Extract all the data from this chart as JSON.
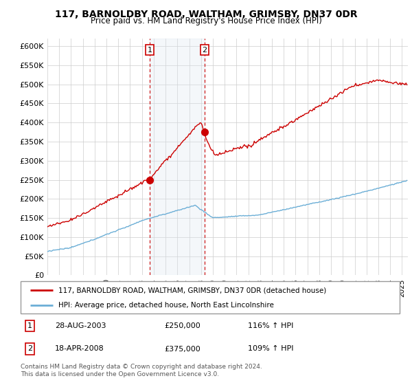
{
  "title": "117, BARNOLDBY ROAD, WALTHAM, GRIMSBY, DN37 0DR",
  "subtitle": "Price paid vs. HM Land Registry's House Price Index (HPI)",
  "ylabel_ticks": [
    "£0",
    "£50K",
    "£100K",
    "£150K",
    "£200K",
    "£250K",
    "£300K",
    "£350K",
    "£400K",
    "£450K",
    "£500K",
    "£550K",
    "£600K"
  ],
  "ylim": [
    0,
    620000
  ],
  "sale1_date_num": 2003.66,
  "sale1_price": 250000,
  "sale2_date_num": 2008.3,
  "sale2_price": 375000,
  "legend_line1": "117, BARNOLDBY ROAD, WALTHAM, GRIMSBY, DN37 0DR (detached house)",
  "legend_line2": "HPI: Average price, detached house, North East Lincolnshire",
  "table_row1": [
    "1",
    "28-AUG-2003",
    "£250,000",
    "116% ↑ HPI"
  ],
  "table_row2": [
    "2",
    "18-APR-2008",
    "£375,000",
    "109% ↑ HPI"
  ],
  "footer": "Contains HM Land Registry data © Crown copyright and database right 2024.\nThis data is licensed under the Open Government Licence v3.0.",
  "hpi_color": "#6baed6",
  "price_color": "#cc0000",
  "shade_color": "#dce6f1",
  "vline_color": "#cc0000",
  "background_color": "#ffffff",
  "grid_color": "#cccccc"
}
